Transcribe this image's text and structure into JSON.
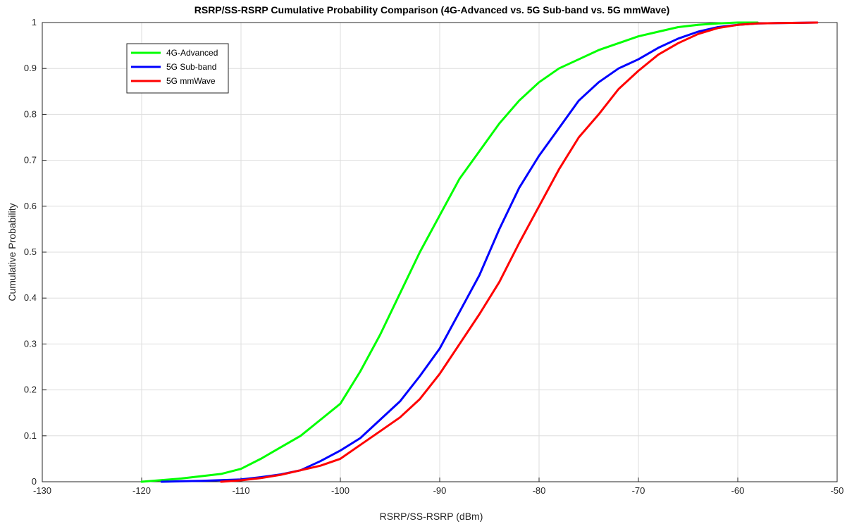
{
  "chart_data": {
    "type": "line",
    "title": "RSRP/SS-RSRP Cumulative Probability Comparison (4G-Advanced vs. 5G Sub-band vs. 5G mmWave)",
    "xlabel": "RSRP/SS-RSRP (dBm)",
    "ylabel": "Cumulative Probability",
    "xlim": [
      -130,
      -50
    ],
    "ylim": [
      0,
      1
    ],
    "xticks": [
      -130,
      -120,
      -110,
      -100,
      -90,
      -80,
      -70,
      -60,
      -50
    ],
    "yticks": [
      0,
      0.1,
      0.2,
      0.3,
      0.4,
      0.5,
      0.6,
      0.7,
      0.8,
      0.9,
      1
    ],
    "xtick_labels": [
      "-130",
      "-120",
      "-110",
      "-100",
      "-90",
      "-80",
      "-70",
      "-60",
      "-50"
    ],
    "ytick_labels": [
      "0",
      "0.1",
      "0.2",
      "0.3",
      "0.4",
      "0.5",
      "0.6",
      "0.7",
      "0.8",
      "0.9",
      "1"
    ],
    "grid": true,
    "legend_position": "top-left",
    "series": [
      {
        "name": "4G-Advanced",
        "color": "#00ff00",
        "x": [
          -120,
          -116,
          -112,
          -110,
          -108,
          -106,
          -104,
          -102,
          -100,
          -98,
          -96,
          -94,
          -92,
          -90,
          -88,
          -86,
          -84,
          -82,
          -80,
          -78,
          -76,
          -74,
          -72,
          -70,
          -68,
          -66,
          -64,
          -62,
          -60,
          -58
        ],
        "y": [
          0,
          0.007,
          0.017,
          0.028,
          0.05,
          0.075,
          0.1,
          0.135,
          0.17,
          0.24,
          0.32,
          0.41,
          0.5,
          0.58,
          0.66,
          0.72,
          0.78,
          0.83,
          0.87,
          0.9,
          0.92,
          0.94,
          0.955,
          0.97,
          0.98,
          0.99,
          0.995,
          0.998,
          1.0,
          1.0
        ]
      },
      {
        "name": "5G Sub-band",
        "color": "#0000ff",
        "x": [
          -118,
          -114,
          -110,
          -108,
          -106,
          -104,
          -102,
          -100,
          -98,
          -96,
          -94,
          -92,
          -90,
          -88,
          -86,
          -84,
          -82,
          -80,
          -78,
          -76,
          -74,
          -72,
          -70,
          -68,
          -66,
          -64,
          -62,
          -60,
          -58,
          -56,
          -52
        ],
        "y": [
          0,
          0.002,
          0.005,
          0.01,
          0.016,
          0.025,
          0.045,
          0.068,
          0.095,
          0.135,
          0.175,
          0.23,
          0.29,
          0.37,
          0.45,
          0.55,
          0.64,
          0.71,
          0.77,
          0.83,
          0.87,
          0.9,
          0.92,
          0.945,
          0.965,
          0.98,
          0.99,
          0.995,
          0.998,
          0.999,
          1.0
        ]
      },
      {
        "name": "5G mmWave",
        "color": "#ff0000",
        "x": [
          -112,
          -110,
          -108,
          -106,
          -104,
          -102,
          -100,
          -98,
          -96,
          -94,
          -92,
          -90,
          -88,
          -86,
          -84,
          -82,
          -80,
          -78,
          -76,
          -74,
          -72,
          -70,
          -68,
          -66,
          -64,
          -62,
          -60,
          -58,
          -56,
          -52
        ],
        "y": [
          0,
          0.003,
          0.008,
          0.015,
          0.025,
          0.035,
          0.05,
          0.08,
          0.11,
          0.14,
          0.18,
          0.235,
          0.3,
          0.365,
          0.435,
          0.52,
          0.6,
          0.68,
          0.75,
          0.8,
          0.855,
          0.895,
          0.93,
          0.955,
          0.975,
          0.988,
          0.995,
          0.998,
          0.999,
          1.0
        ]
      }
    ]
  }
}
